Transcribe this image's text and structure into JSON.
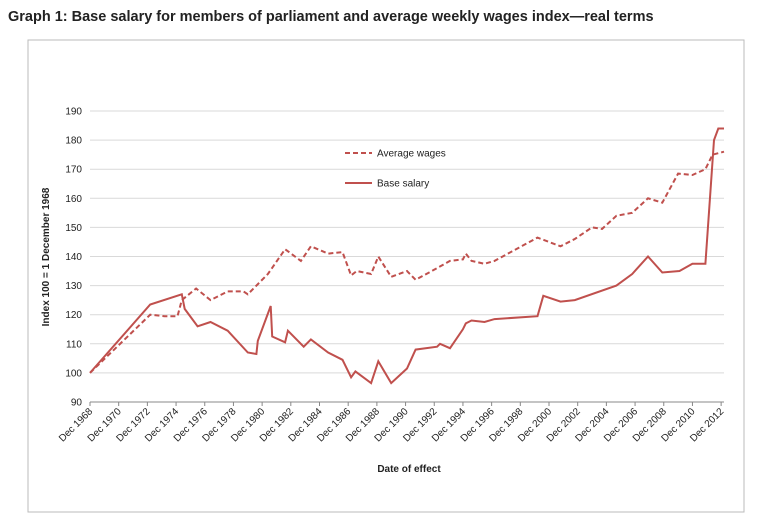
{
  "chart_data": {
    "type": "line",
    "title": "Graph 1: Base salary for members of parliament and average weekly wages index—real terms",
    "y_label": "Index 100 = 1 December 1968",
    "x_label": "Date of effect",
    "xlim": [
      1968.9,
      2013.1
    ],
    "ylim": [
      90,
      190
    ],
    "yticks": [
      90,
      100,
      110,
      120,
      130,
      140,
      150,
      160,
      170,
      180,
      190
    ],
    "xticks": [
      {
        "value": 1968.9,
        "label": "Dec 1968"
      },
      {
        "value": 1970.9,
        "label": "Dec 1970"
      },
      {
        "value": 1972.9,
        "label": "Dec 1972"
      },
      {
        "value": 1974.9,
        "label": "Dec 1974"
      },
      {
        "value": 1976.9,
        "label": "Dec 1976"
      },
      {
        "value": 1978.9,
        "label": "Dec 1978"
      },
      {
        "value": 1980.9,
        "label": "Dec 1980"
      },
      {
        "value": 1982.9,
        "label": "Dec 1982"
      },
      {
        "value": 1984.9,
        "label": "Dec 1984"
      },
      {
        "value": 1986.9,
        "label": "Dec 1986"
      },
      {
        "value": 1988.9,
        "label": "Dec 1988"
      },
      {
        "value": 1990.9,
        "label": "Dec 1990"
      },
      {
        "value": 1992.9,
        "label": "Dec 1992"
      },
      {
        "value": 1994.9,
        "label": "Dec 1994"
      },
      {
        "value": 1996.9,
        "label": "Dec 1996"
      },
      {
        "value": 1998.9,
        "label": "Dec 1998"
      },
      {
        "value": 2000.9,
        "label": "Dec 2000"
      },
      {
        "value": 2002.9,
        "label": "Dec 2002"
      },
      {
        "value": 2004.9,
        "label": "Dec 2004"
      },
      {
        "value": 2006.9,
        "label": "Dec 2006"
      },
      {
        "value": 2008.9,
        "label": "Dec 2008"
      },
      {
        "value": 2010.9,
        "label": "Dec 2010"
      },
      {
        "value": 2012.9,
        "label": "Dec 2012"
      }
    ],
    "grid": true,
    "series": [
      {
        "name": "Average wages",
        "color": "#c0504d",
        "style": "dashed",
        "x": [
          1968.9,
          1973.1,
          1974.1,
          1975.0,
          1975.3,
          1976.3,
          1977.3,
          1978.5,
          1979.6,
          1979.9,
          1981.3,
          1982.5,
          1983.6,
          1984.3,
          1985.5,
          1986.5,
          1987.1,
          1987.5,
          1988.5,
          1989.0,
          1989.9,
          1991.0,
          1991.6,
          1993.1,
          1994.0,
          1994.9,
          1995.1,
          1995.5,
          1996.4,
          1997.1,
          2000.1,
          2001.7,
          2002.7,
          2003.9,
          2004.6,
          2005.6,
          2006.7,
          2007.8,
          2008.8,
          2009.9,
          2010.9,
          2011.8,
          2012.3,
          2013.1
        ],
        "values": [
          100,
          120,
          119.5,
          119.5,
          125,
          129,
          125,
          128,
          128,
          127,
          134,
          142.5,
          138.5,
          143.5,
          141,
          141.5,
          133.5,
          135,
          134,
          140,
          133,
          135,
          132,
          136,
          138.5,
          139,
          141,
          138.5,
          137.5,
          138.5,
          146.5,
          143.5,
          146,
          150,
          149.5,
          154,
          155,
          160,
          158.5,
          168.5,
          168,
          170,
          175,
          176
        ]
      },
      {
        "name": "Base salary",
        "color": "#c0504d",
        "style": "solid",
        "x": [
          1968.9,
          1973.1,
          1975.3,
          1975.5,
          1976.4,
          1977.3,
          1978.5,
          1979.9,
          1980.5,
          1980.6,
          1981.5,
          1981.6,
          1982.5,
          1982.7,
          1983.8,
          1984.3,
          1985.5,
          1986.5,
          1987.1,
          1987.4,
          1988.5,
          1989.0,
          1989.9,
          1991.0,
          1991.6,
          1993.1,
          1993.3,
          1994.0,
          1994.9,
          1995.1,
          1995.5,
          1996.4,
          1997.1,
          2000.1,
          2000.5,
          2001.7,
          2002.7,
          2005.6,
          2006.7,
          2007.8,
          2008.8,
          2010.0,
          2010.9,
          2011.8,
          2012.4,
          2012.7,
          2013.1
        ],
        "values": [
          100,
          123.5,
          127,
          122,
          116,
          117.5,
          114.5,
          107,
          106.5,
          111,
          123,
          112.5,
          110.5,
          114.5,
          109,
          111.5,
          107,
          104.5,
          98.5,
          100.5,
          96.5,
          104,
          96.5,
          101.5,
          108,
          109,
          110,
          108.5,
          115,
          117,
          118,
          117.5,
          118.5,
          119.5,
          126.5,
          124.5,
          125,
          130,
          134,
          140,
          134.5,
          135,
          137.5,
          137.5,
          180,
          184,
          184
        ]
      }
    ]
  }
}
